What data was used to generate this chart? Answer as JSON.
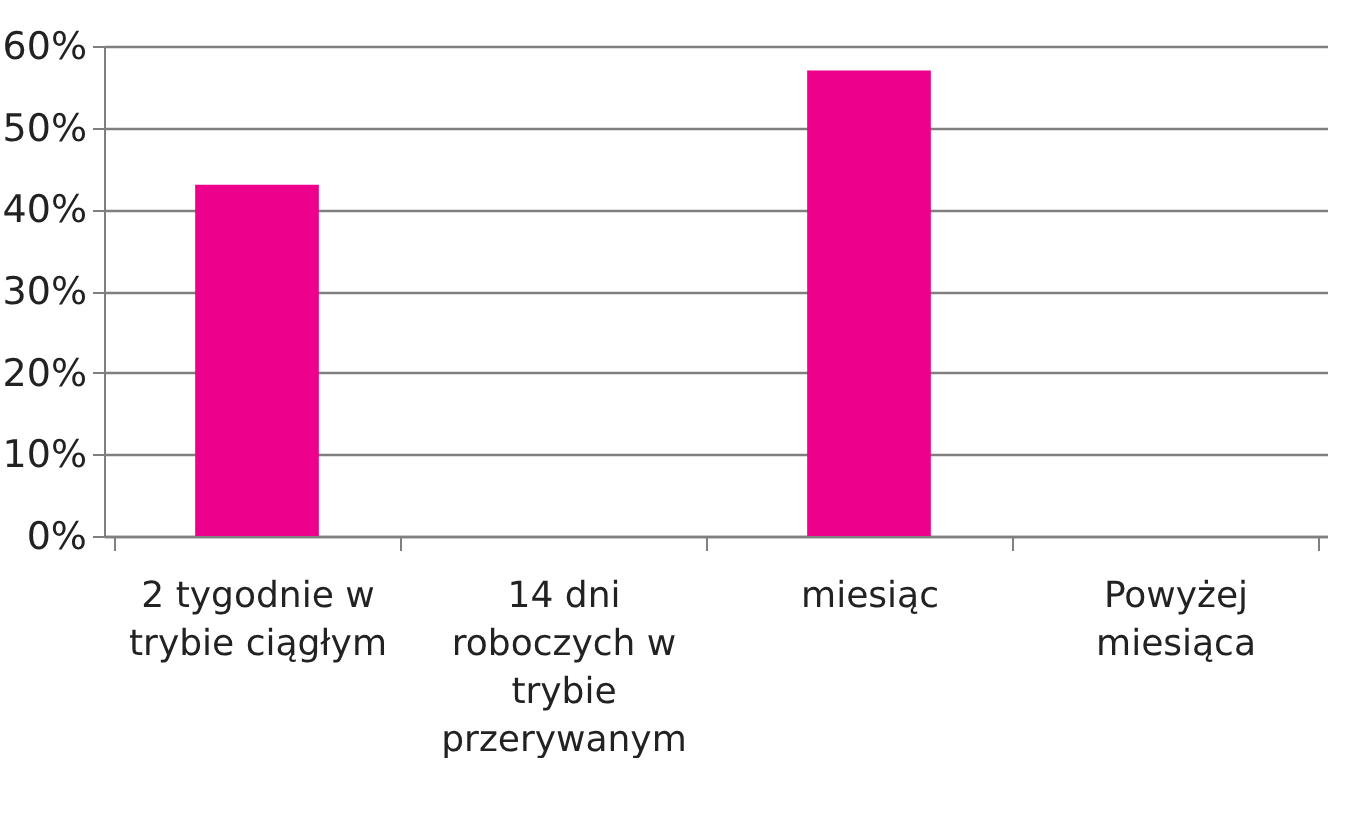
{
  "chart_data": {
    "type": "bar",
    "categories": [
      "2 tygodnie w trybie ciągłym",
      "14 dni roboczych w trybie przerywanym",
      "miesiąc",
      "Powyżej miesiąca"
    ],
    "values": [
      43,
      0,
      57,
      0
    ],
    "color": "#ec008c",
    "ylim": [
      0,
      60
    ],
    "yticks": [
      {
        "value": 0,
        "label": "0%"
      },
      {
        "value": 10,
        "label": "10%"
      },
      {
        "value": 20,
        "label": "20%"
      },
      {
        "value": 30,
        "label": "30%"
      },
      {
        "value": 40,
        "label": "40%"
      },
      {
        "value": 50,
        "label": "50%"
      },
      {
        "value": 60,
        "label": "60%"
      }
    ],
    "grid": "y"
  }
}
